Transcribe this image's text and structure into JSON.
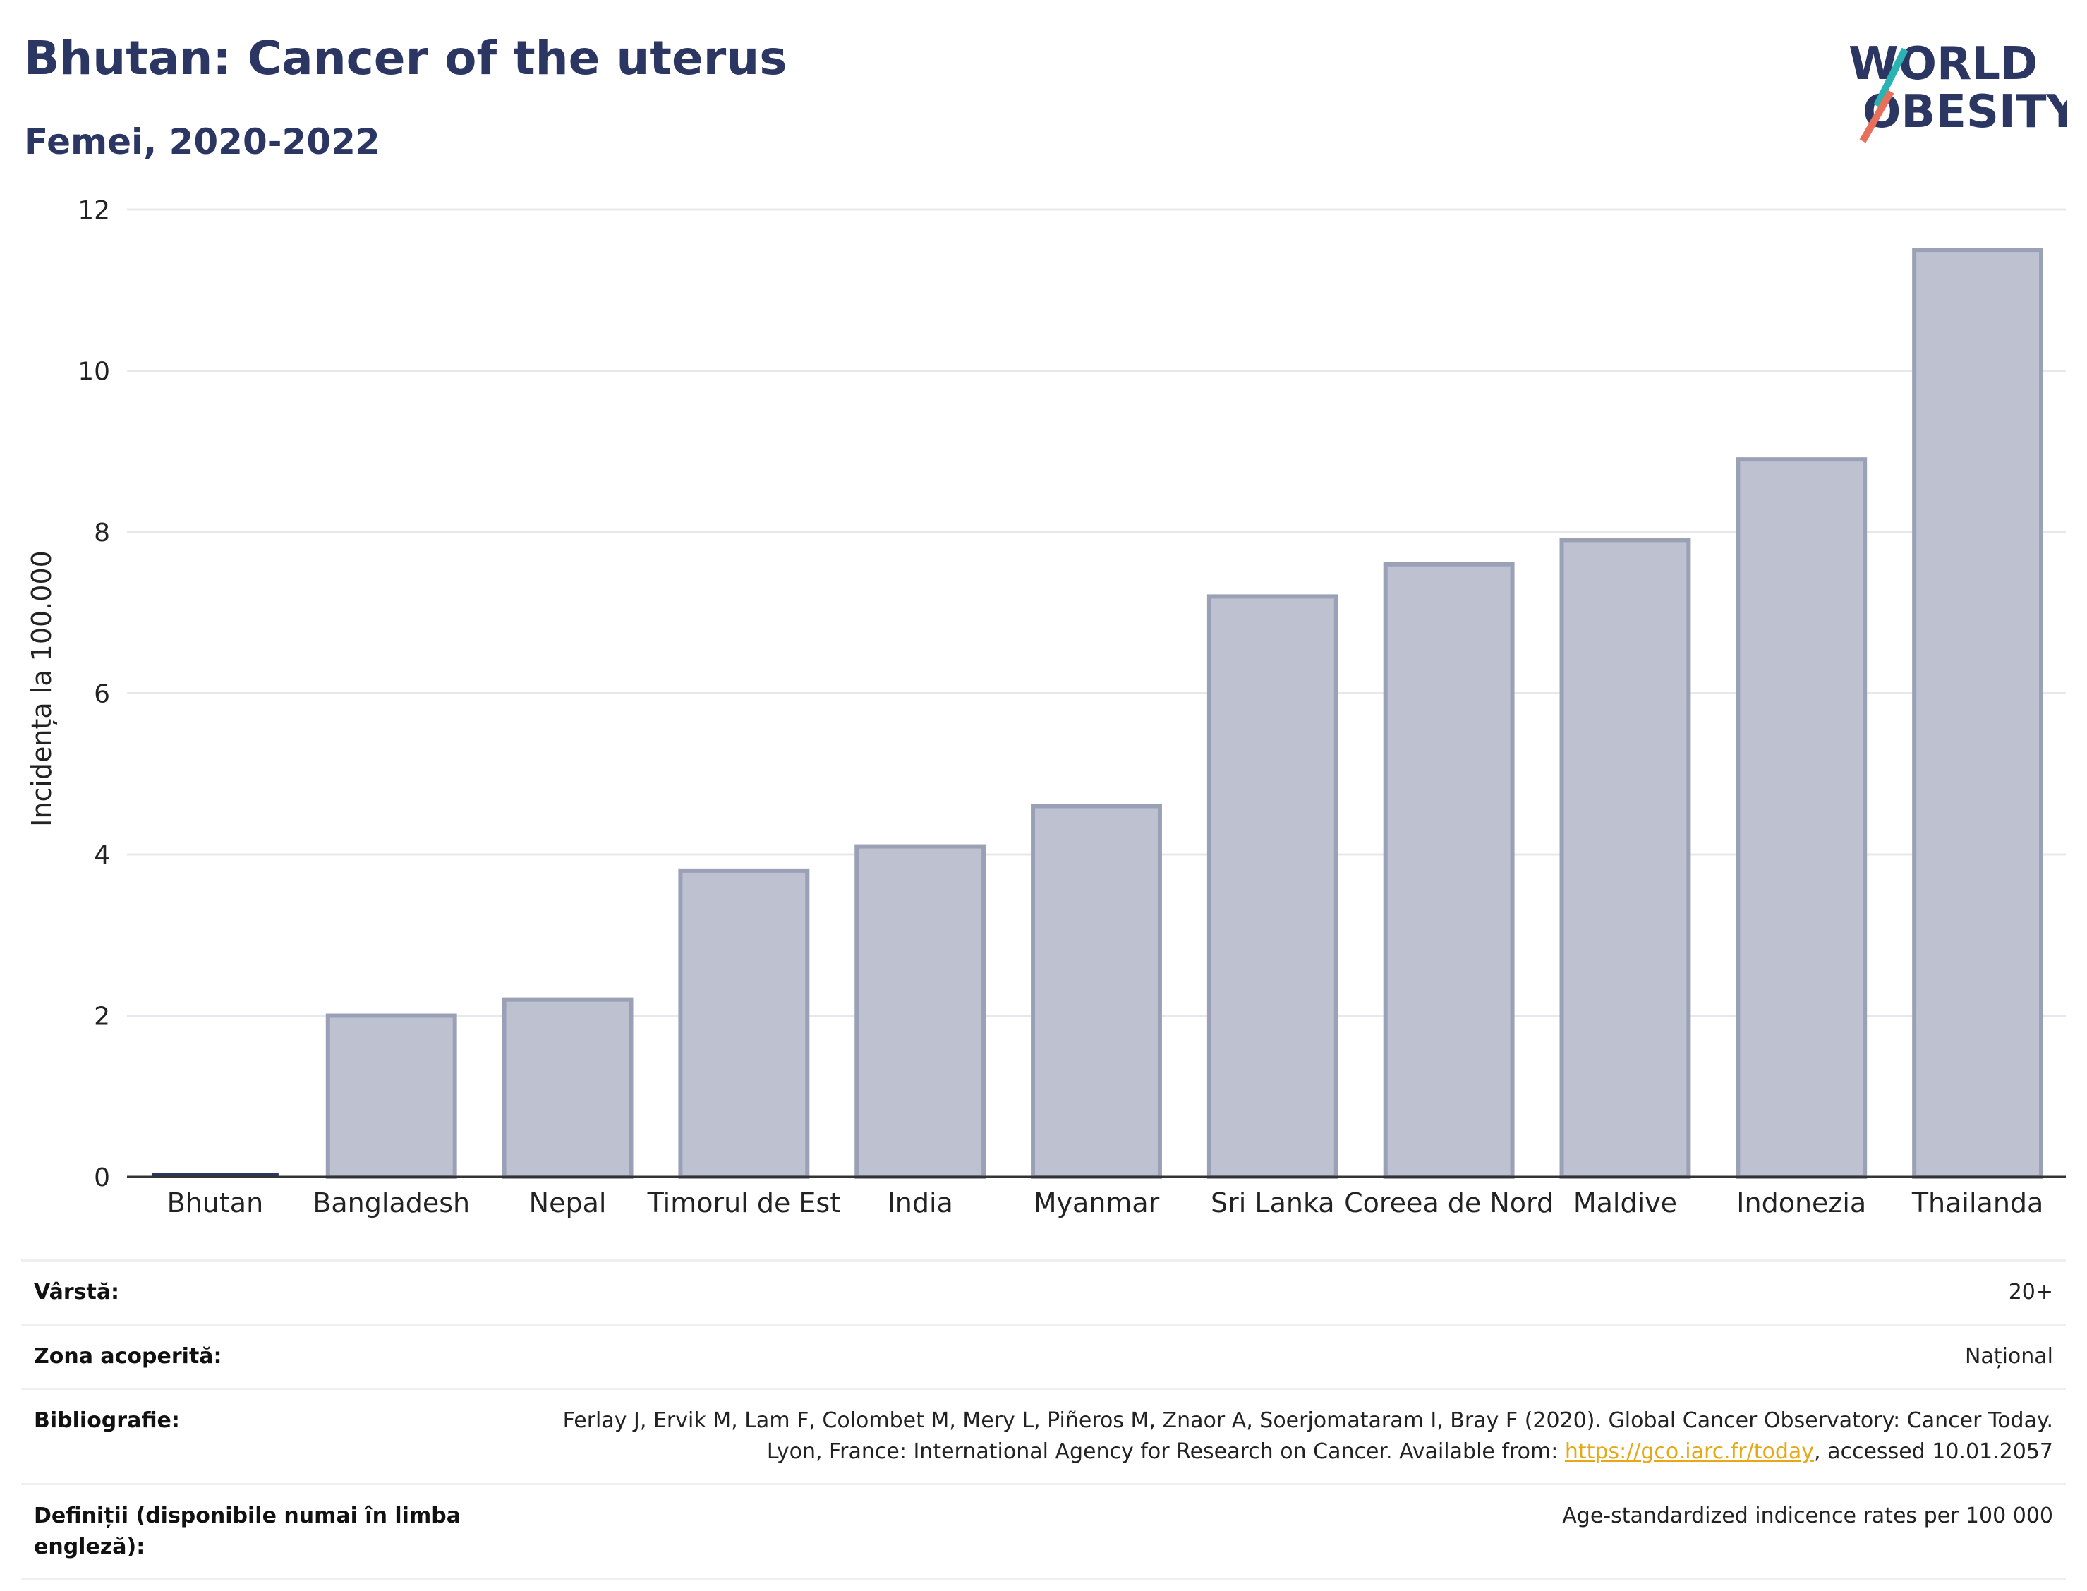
{
  "header": {
    "title": "Bhutan: Cancer of the uterus",
    "subtitle": "Femei, 2020-2022"
  },
  "logo": {
    "line1": "WORLD",
    "line2": "OBESITY",
    "text_color": "#2b3663",
    "accent1": "#2ab3b3",
    "accent2": "#e8705a"
  },
  "chart_data": {
    "type": "bar",
    "categories": [
      "Bhutan",
      "Bangladesh",
      "Nepal",
      "Timorul de Est",
      "India",
      "Myanmar",
      "Sri Lanka",
      "Coreea de Nord",
      "Maldive",
      "Indonezia",
      "Thailanda"
    ],
    "values": [
      0.0,
      2.0,
      2.2,
      3.8,
      4.1,
      4.6,
      7.2,
      7.6,
      7.9,
      8.9,
      11.5
    ],
    "highlight": "Bhutan",
    "ylabel": "Incidența la 100.000",
    "ylim": [
      0,
      12
    ],
    "yticks": [
      0,
      2,
      4,
      6,
      8,
      10,
      12
    ],
    "grid": true,
    "colors": {
      "bar_fill": "#bec2d0",
      "bar_stroke": "#9aa0b6",
      "highlight": "#2b3663"
    }
  },
  "meta": [
    {
      "label": "Vârstă:",
      "value": "20+"
    },
    {
      "label": "Zona acoperită:",
      "value": "Național"
    },
    {
      "label": "Bibliografie:",
      "value_pre": "Ferlay J, Ervik M, Lam F, Colombet M, Mery L, Piñeros M, Znaor A, Soerjomataram I, Bray F (2020). Global Cancer Observatory: Cancer Today. Lyon, France: International Agency for Research on Cancer. Available from: ",
      "link": "https://gco.iarc.fr/today",
      "value_post": ", accessed 10.01.2057"
    },
    {
      "label": "Definiții (disponibile numai în limba engleză):",
      "value": "Age-standardized indicence rates per 100 000"
    }
  ]
}
